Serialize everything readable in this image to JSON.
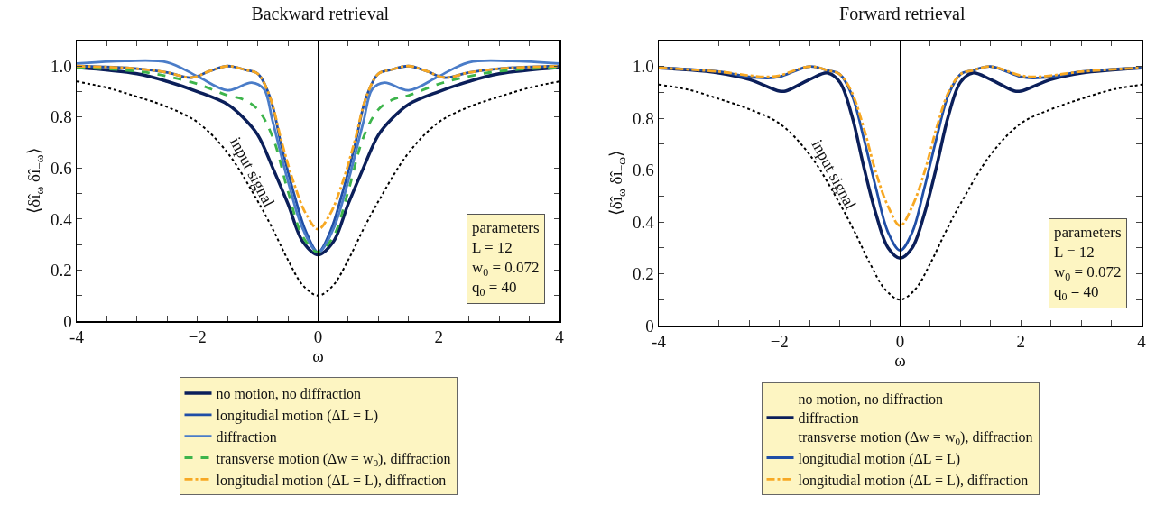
{
  "chart_data": [
    {
      "type": "line",
      "title": "Backward retrieval",
      "xlabel": "ω",
      "ylabel": "⟨δî$_{ω}$ δî$_{−ω}$⟩",
      "xlim": [
        -4,
        4
      ],
      "ylim": [
        0,
        1.1
      ],
      "xticks": [
        -4,
        {
          "value": -3.5,
          "label": null
        },
        {
          "value": -3,
          "label": null
        },
        {
          "value": -2.5,
          "label": null
        },
        {
          "value": -2,
          "label": "−2"
        },
        {
          "value": -1.5,
          "label": null
        },
        {
          "value": -1,
          "label": null
        },
        {
          "value": -0.5,
          "label": null
        },
        0,
        {
          "value": 0.5,
          "label": null
        },
        {
          "value": 1,
          "label": null
        },
        {
          "value": 1.5,
          "label": null
        },
        2,
        {
          "value": 2.5,
          "label": null
        },
        {
          "value": 3,
          "label": null
        },
        {
          "value": 3.5,
          "label": null
        },
        4
      ],
      "yticks": [
        0,
        {
          "value": 0.1,
          "label": null
        },
        0.2,
        {
          "value": 0.3,
          "label": null
        },
        0.4,
        {
          "value": 0.5,
          "label": null
        },
        0.6,
        {
          "value": 0.7,
          "label": null
        },
        0.8,
        {
          "value": 0.9,
          "label": null
        },
        {
          "value": 1,
          "label": "1.0"
        }
      ],
      "grid": false,
      "legend": "bottom",
      "ref_lines": [
        {
          "axis": "x",
          "value": 0,
          "color": "#000000"
        }
      ],
      "annotations": [
        "input signal",
        "parameters\nL = 12\nw$_{0}$ = 0.072\nq$_{0}$ = 40"
      ],
      "series": [
        {
          "x": [
            -4,
            -3,
            -2.5,
            -2,
            -1.5,
            -1.25,
            -1,
            -0.75,
            -0.5,
            -0.25,
            0,
            0.25,
            0.5,
            0.75,
            1,
            1.25,
            1.5,
            2,
            2.5,
            3,
            4
          ],
          "values": [
            0.995,
            0.97,
            0.94,
            0.9,
            0.85,
            0.8,
            0.73,
            0.6,
            0.46,
            0.31,
            0.26,
            0.31,
            0.46,
            0.6,
            0.73,
            0.8,
            0.85,
            0.9,
            0.94,
            0.97,
            0.995
          ],
          "name": "no motion, no diffraction",
          "color": "#0b1f5a",
          "line_style": "solid"
        },
        {
          "x": [
            -4,
            -3,
            -2.5,
            -2.1,
            -1.8,
            -1.5,
            -1.2,
            -1,
            -0.8,
            -0.6,
            -0.4,
            -0.2,
            0,
            0.2,
            0.4,
            0.6,
            0.8,
            1,
            1.2,
            1.5,
            1.8,
            2.1,
            2.5,
            3,
            4
          ],
          "values": [
            1,
            0.99,
            0.975,
            0.955,
            0.98,
            1,
            0.985,
            0.97,
            0.88,
            0.68,
            0.5,
            0.35,
            0.27,
            0.35,
            0.5,
            0.68,
            0.88,
            0.97,
            0.985,
            1,
            0.98,
            0.955,
            0.975,
            0.99,
            1
          ],
          "name": "longitudial motion (ΔL = L)",
          "color": "#1f4ea6",
          "line_style": "solid"
        },
        {
          "x": [
            -4,
            -3.2,
            -2.5,
            -2,
            -1.5,
            -1.1,
            -0.9,
            -0.75,
            -0.5,
            -0.25,
            0,
            0.25,
            0.5,
            0.75,
            0.9,
            1.1,
            1.5,
            2,
            2.5,
            3.2,
            4
          ],
          "values": [
            1.01,
            1.02,
            1.015,
            0.96,
            0.905,
            0.935,
            0.91,
            0.78,
            0.55,
            0.36,
            0.27,
            0.36,
            0.55,
            0.78,
            0.91,
            0.935,
            0.905,
            0.96,
            1.015,
            1.02,
            1.01
          ],
          "name": "diffraction",
          "color": "#4a7cc8",
          "line_style": "solid"
        },
        {
          "x": [
            -4,
            -3,
            -2.5,
            -2,
            -1.5,
            -1.25,
            -1,
            -0.75,
            -0.5,
            -0.25,
            0,
            0.25,
            0.5,
            0.75,
            1,
            1.25,
            1.5,
            2,
            2.5,
            3,
            4
          ],
          "values": [
            0.995,
            0.98,
            0.96,
            0.93,
            0.885,
            0.87,
            0.83,
            0.72,
            0.51,
            0.33,
            0.27,
            0.33,
            0.51,
            0.72,
            0.83,
            0.87,
            0.885,
            0.93,
            0.96,
            0.98,
            0.995
          ],
          "name": "transverse motion (Δw = w$_{0}$), diffraction",
          "color": "#3db44b",
          "line_style": "dashed"
        },
        {
          "x": [
            -4,
            -3,
            -2.5,
            -2.1,
            -1.8,
            -1.5,
            -1.2,
            -1,
            -0.8,
            -0.6,
            -0.4,
            -0.2,
            0,
            0.2,
            0.4,
            0.6,
            0.8,
            1,
            1.2,
            1.5,
            1.8,
            2.1,
            2.5,
            3,
            4
          ],
          "values": [
            1,
            0.99,
            0.975,
            0.955,
            0.98,
            1,
            0.985,
            0.97,
            0.88,
            0.7,
            0.54,
            0.42,
            0.36,
            0.42,
            0.54,
            0.7,
            0.88,
            0.97,
            0.985,
            1,
            0.98,
            0.955,
            0.975,
            0.99,
            1
          ],
          "name": "longitudial motion (ΔL = L), diffraction",
          "color": "#f7a823",
          "line_style": "dashdot"
        },
        {
          "x": [
            -4,
            -3.5,
            -3,
            -2.5,
            -2,
            -1.5,
            -1,
            -0.75,
            -0.5,
            -0.25,
            0,
            0.25,
            0.5,
            0.75,
            1,
            1.5,
            2,
            2.5,
            3,
            3.5,
            4
          ],
          "values": [
            0.94,
            0.915,
            0.88,
            0.84,
            0.78,
            0.66,
            0.47,
            0.36,
            0.24,
            0.14,
            0.1,
            0.14,
            0.24,
            0.36,
            0.47,
            0.66,
            0.78,
            0.84,
            0.88,
            0.915,
            0.94
          ],
          "color": "#000000",
          "line_style": "dotted"
        }
      ]
    },
    {
      "type": "line",
      "title": "Forward retrieval",
      "xlabel": "ω",
      "ylabel": "⟨δî$_{ω}$ δî$_{−ω}$⟩",
      "xlim": [
        -4,
        4
      ],
      "ylim": [
        0,
        1.1
      ],
      "xticks": [
        -4,
        {
          "value": -3.5,
          "label": null
        },
        {
          "value": -3,
          "label": null
        },
        {
          "value": -2.5,
          "label": null
        },
        {
          "value": -2,
          "label": "−2"
        },
        {
          "value": -1.5,
          "label": null
        },
        {
          "value": -1,
          "label": null
        },
        {
          "value": -0.5,
          "label": null
        },
        0,
        {
          "value": 0.5,
          "label": null
        },
        {
          "value": 1,
          "label": null
        },
        {
          "value": 1.5,
          "label": null
        },
        2,
        {
          "value": 2.5,
          "label": null
        },
        {
          "value": 3,
          "label": null
        },
        {
          "value": 3.5,
          "label": null
        },
        4
      ],
      "yticks": [
        0,
        {
          "value": 0.1,
          "label": null
        },
        0.2,
        {
          "value": 0.3,
          "label": null
        },
        0.4,
        {
          "value": 0.5,
          "label": null
        },
        0.6,
        {
          "value": 0.7,
          "label": null
        },
        0.8,
        {
          "value": 0.9,
          "label": null
        },
        {
          "value": 1,
          "label": "1.0"
        }
      ],
      "grid": false,
      "legend": "bottom",
      "ref_lines": [
        {
          "axis": "x",
          "value": 0,
          "color": "#000000"
        }
      ],
      "annotations": [
        "input signal",
        "parameters\nL = 12\nw$_{0}$ = 0.072\nq$_{0}$ = 40"
      ],
      "series": [
        {
          "x": [
            -4,
            -3,
            -2.5,
            -2,
            -1.9,
            -1.5,
            -1.2,
            -1,
            -0.8,
            -0.6,
            -0.4,
            -0.2,
            0,
            0.2,
            0.4,
            0.6,
            0.8,
            1,
            1.2,
            1.5,
            1.9,
            2,
            2.5,
            3,
            4
          ],
          "values": [
            0.995,
            0.975,
            0.95,
            0.905,
            0.905,
            0.95,
            0.975,
            0.94,
            0.81,
            0.61,
            0.43,
            0.3,
            0.26,
            0.3,
            0.43,
            0.61,
            0.81,
            0.94,
            0.975,
            0.95,
            0.905,
            0.905,
            0.95,
            0.975,
            0.995
          ],
          "name": "no motion, no diffraction\ndiffraction\ntransverse motion (Δw = w$_{0}$), diffraction",
          "color": "#0b1f5a",
          "line_style": "solid"
        },
        {
          "x": [
            -4,
            -3,
            -2.5,
            -2.2,
            -2,
            -1.5,
            -1.2,
            -1,
            -0.8,
            -0.6,
            -0.4,
            -0.2,
            0,
            0.2,
            0.4,
            0.6,
            0.8,
            1,
            1.2,
            1.5,
            2,
            2.2,
            2.5,
            3,
            4
          ],
          "values": [
            0.995,
            0.98,
            0.96,
            0.955,
            0.96,
            1,
            0.985,
            0.97,
            0.89,
            0.72,
            0.53,
            0.36,
            0.29,
            0.36,
            0.53,
            0.72,
            0.89,
            0.97,
            0.985,
            1,
            0.96,
            0.955,
            0.96,
            0.98,
            0.995
          ],
          "name": "longitudial motion (ΔL = L)",
          "color": "#1f4ea6",
          "line_style": "solid"
        },
        {
          "x": [
            -4,
            -3,
            -2.5,
            -2.2,
            -2,
            -1.5,
            -1.2,
            -1,
            -0.8,
            -0.6,
            -0.4,
            -0.2,
            0,
            0.2,
            0.4,
            0.6,
            0.8,
            1,
            1.2,
            1.5,
            2,
            2.2,
            2.5,
            3,
            4
          ],
          "values": [
            0.995,
            0.98,
            0.965,
            0.96,
            0.965,
            1,
            0.985,
            0.97,
            0.9,
            0.76,
            0.59,
            0.46,
            0.385,
            0.46,
            0.59,
            0.76,
            0.9,
            0.97,
            0.985,
            1,
            0.965,
            0.96,
            0.965,
            0.98,
            0.995
          ],
          "name": "longitudial motion (ΔL = L), diffraction",
          "color": "#f7a823",
          "line_style": "dashdot"
        },
        {
          "x": [
            -4,
            -3.5,
            -3,
            -2.5,
            -2,
            -1.5,
            -1,
            -0.75,
            -0.5,
            -0.25,
            0,
            0.25,
            0.5,
            0.75,
            1,
            1.5,
            2,
            2.5,
            3,
            3.5,
            4
          ],
          "values": [
            0.93,
            0.91,
            0.875,
            0.835,
            0.78,
            0.66,
            0.47,
            0.36,
            0.24,
            0.14,
            0.1,
            0.14,
            0.24,
            0.36,
            0.47,
            0.66,
            0.78,
            0.835,
            0.875,
            0.91,
            0.93
          ],
          "color": "#000000",
          "line_style": "dotted"
        }
      ]
    }
  ]
}
